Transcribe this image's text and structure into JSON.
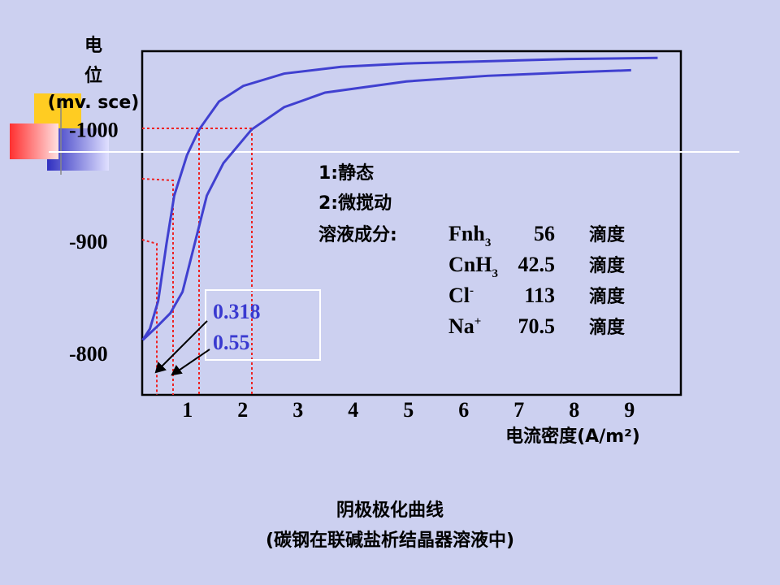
{
  "chart_data": {
    "type": "line",
    "title": "阴极极化曲线",
    "subtitle": "(碳钢在联碱盐析结晶器溶液中)",
    "y_label_lines": [
      "电",
      "位",
      "(mv. sce)"
    ],
    "x_label": "电流密度(A/m²)",
    "xlim": [
      0.18,
      9.93
    ],
    "xticks": [
      1,
      2,
      3,
      4,
      5,
      6,
      7,
      8,
      9
    ],
    "ylim": [
      -763,
      -1070
    ],
    "yticks": [
      -1000,
      -900,
      -800
    ],
    "color": "#4040d0",
    "series": [
      {
        "name": "1:静态",
        "x": [
          0.19,
          0.32,
          0.47,
          0.62,
          0.76,
          0.99,
          1.21,
          1.57,
          2.01,
          2.75,
          3.78,
          4.96,
          6.43,
          7.9,
          9.51
        ],
        "y": [
          -812,
          -822,
          -847,
          -898,
          -941,
          -977,
          -1000,
          -1025,
          -1039,
          -1050,
          -1056,
          -1059,
          -1061,
          -1063,
          -1064
        ]
      },
      {
        "name": "2:微搅动",
        "x": [
          0.19,
          0.47,
          0.69,
          0.91,
          1.13,
          1.35,
          1.65,
          2.16,
          2.75,
          3.49,
          4.96,
          6.43,
          7.9,
          9.03
        ],
        "y": [
          -812,
          -825,
          -836,
          -855,
          -898,
          -941,
          -970,
          -1000,
          -1020,
          -1033,
          -1043,
          -1048,
          -1051,
          -1053
        ]
      }
    ],
    "annotations": [
      "0.318",
      "0.55"
    ],
    "composition_label": "溶液成分:",
    "composition": [
      {
        "name": "Fnh",
        "sub": "3",
        "value": 56,
        "unit": "滴度"
      },
      {
        "name": "CnH",
        "sub": "3",
        "value": 42.5,
        "unit": "滴度"
      },
      {
        "name": "Cl",
        "sup": "-",
        "value": 113,
        "unit": "滴度"
      },
      {
        "name": "Na",
        "sup": "+",
        "value": 70.5,
        "unit": "滴度"
      }
    ]
  }
}
